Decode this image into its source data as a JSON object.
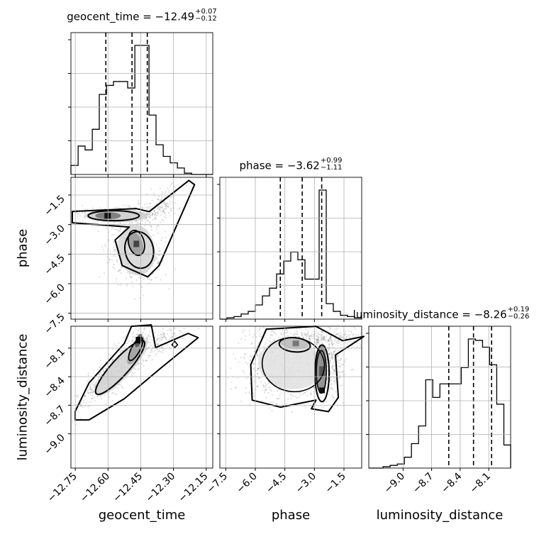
{
  "titles": {
    "geocent_time": {
      "lead": "geocent_time = −12.49",
      "up": "+0.07",
      "down": "−0.12"
    },
    "phase": {
      "lead": "phase = −3.62",
      "up": "+0.99",
      "down": "−1.11"
    },
    "luminosity_distance": {
      "lead": "luminosity_distance = −8.26",
      "up": "+0.19",
      "down": "−0.26"
    }
  },
  "axis_labels": {
    "x": [
      "geocent_time",
      "phase",
      "luminosity_distance"
    ],
    "y": [
      "phase",
      "luminosity_distance"
    ]
  },
  "chart_data": {
    "type": "corner",
    "parameters": [
      "geocent_time",
      "phase",
      "luminosity_distance"
    ],
    "ranges": {
      "geocent_time": [
        -12.77,
        -12.12
      ],
      "phase": [
        -7.8,
        -0.6
      ],
      "luminosity_distance": [
        -9.36,
        -7.87
      ]
    },
    "ticks": {
      "geocent_time": {
        "values": [
          -12.75,
          -12.6,
          -12.45,
          -12.3,
          -12.15
        ],
        "labels": [
          "−12.75",
          "−12.60",
          "−12.45",
          "−12.30",
          "−12.15"
        ]
      },
      "phase": {
        "values": [
          -7.5,
          -6.0,
          -4.5,
          -3.0,
          -1.5
        ],
        "labels": [
          "−7.5",
          "−6.0",
          "−4.5",
          "−3.0",
          "−1.5"
        ]
      },
      "luminosity_distance": {
        "values": [
          -9.0,
          -8.7,
          -8.4,
          -8.1
        ],
        "labels": [
          "−9.0",
          "−8.7",
          "−8.4",
          "−8.1"
        ]
      }
    },
    "histograms": {
      "geocent_time": {
        "edges": [
          -12.77,
          -12.737,
          -12.705,
          -12.672,
          -12.64,
          -12.607,
          -12.575,
          -12.542,
          -12.51,
          -12.477,
          -12.445,
          -12.412,
          -12.38,
          -12.347,
          -12.315,
          -12.282,
          -12.25,
          -12.217,
          -12.185,
          -12.152,
          -12.12
        ],
        "counts": [
          0.07,
          0.22,
          0.19,
          0.35,
          0.62,
          0.69,
          0.72,
          0.72,
          0.67,
          1.0,
          1.0,
          0.46,
          0.23,
          0.14,
          0.09,
          0.05,
          0.01,
          0.0,
          0.0,
          0.0
        ],
        "quantiles": [
          -12.61,
          -12.49,
          -12.42
        ]
      },
      "phase": {
        "edges": [
          -7.8,
          -7.44,
          -7.08,
          -6.72,
          -6.36,
          -6.0,
          -5.64,
          -5.28,
          -4.92,
          -4.56,
          -4.2,
          -3.84,
          -3.48,
          -3.12,
          -2.76,
          -2.4,
          -2.04,
          -1.68,
          -1.32,
          -0.96,
          -0.6
        ],
        "counts": [
          0.0,
          0.01,
          0.02,
          0.04,
          0.06,
          0.11,
          0.18,
          0.24,
          0.35,
          0.45,
          0.52,
          0.46,
          0.31,
          0.31,
          1.0,
          0.12,
          0.06,
          0.03,
          0.02,
          0.01
        ],
        "quantiles": [
          -4.73,
          -3.62,
          -2.63
        ]
      },
      "luminosity_distance": {
        "edges": [
          -9.36,
          -9.285,
          -9.21,
          -9.136,
          -9.061,
          -8.986,
          -8.912,
          -8.837,
          -8.762,
          -8.688,
          -8.613,
          -8.538,
          -8.464,
          -8.389,
          -8.314,
          -8.24,
          -8.165,
          -8.091,
          -8.016,
          -7.941,
          -7.87
        ],
        "counts": [
          0.0,
          0.0,
          0.01,
          0.02,
          0.03,
          0.08,
          0.18,
          0.31,
          0.65,
          0.52,
          0.62,
          0.62,
          0.62,
          0.74,
          0.95,
          0.94,
          0.89,
          0.76,
          0.47,
          0.17
        ],
        "quantiles": [
          -8.52,
          -8.26,
          -8.07
        ]
      }
    },
    "joint": [
      {
        "x": "geocent_time",
        "y": "phase",
        "mode_points": [
          {
            "x": -12.6,
            "y": -2.55
          },
          {
            "x": -12.48,
            "y": -3.9
          }
        ],
        "trend": "two modes: elongated ridge at phase ≈ −2.5 and broad blob near geocent_time ≈ −12.47"
      },
      {
        "x": "geocent_time",
        "y": "luminosity_distance",
        "mode_points": [
          {
            "x": -12.46,
            "y": -8.01
          }
        ],
        "trend": "positive correlation"
      },
      {
        "x": "phase",
        "y": "luminosity_distance",
        "mode_points": [
          {
            "x": -4.0,
            "y": -8.05
          },
          {
            "x": -2.6,
            "y": -8.3
          }
        ],
        "trend": "two modes"
      }
    ],
    "grid": true
  }
}
